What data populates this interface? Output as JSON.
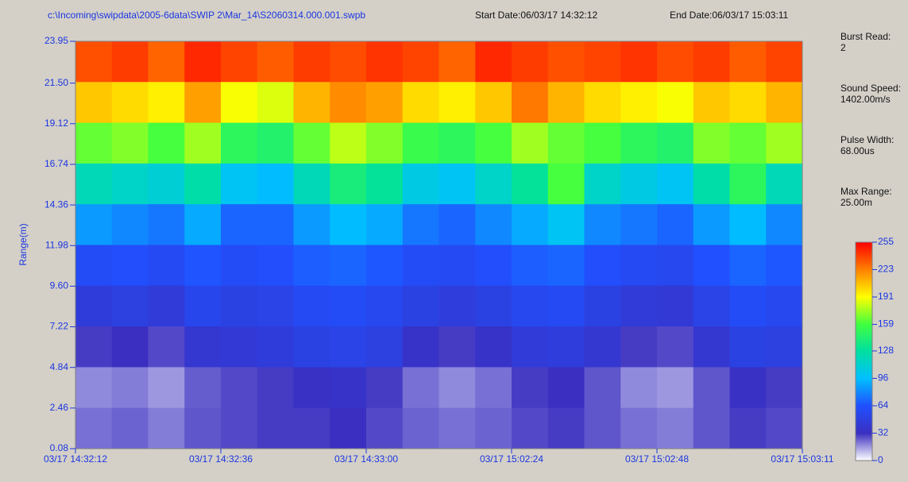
{
  "chart_data": {
    "type": "heatmap",
    "file_path": "c:\\Incoming\\swipdata\\2005-6data\\SWIP 2\\Mar_14\\S2060314.000.001.swpb",
    "start_date": "Start Date:06/03/17 14:32:12",
    "end_date": "End Date:06/03/17 15:03:11",
    "y_label": "Range(m)",
    "ylim": [
      0.08,
      23.95
    ],
    "yticks": [
      23.95,
      {
        "value": 21.5,
        "label": "21.50"
      },
      19.12,
      16.74,
      14.36,
      11.98,
      {
        "value": 9.6,
        "label": "9.60"
      },
      7.22,
      4.84,
      2.46,
      0.08
    ],
    "x_tick_labels": [
      "03/17 14:32:12",
      "03/17 14:32:36",
      "03/17 14:33:00",
      "03/17 15:02:24",
      "03/17 15:02:48",
      "03/17 15:03:11"
    ],
    "info": [
      {
        "label": "Burst Read:",
        "value": "2"
      },
      {
        "label": "Sound Speed:",
        "value": "1402.00m/s"
      },
      {
        "label": "Pulse Width:",
        "value": "68.00us"
      },
      {
        "label": "Max Range:",
        "value": "25.00m"
      }
    ],
    "colorbar_range": [
      0,
      255
    ],
    "colorbar_ticks": [
      255,
      223,
      191,
      159,
      128,
      96,
      64,
      32,
      0
    ],
    "colormap": [
      "#ff0000",
      "#ff8000",
      "#ffff00",
      "#40ff40",
      "#00e0a0",
      "#00c0ff",
      "#2050ff",
      "#3a2fc0",
      "#ffffff"
    ],
    "z": [
      [
        235,
        240,
        230,
        245,
        238,
        232,
        240,
        236,
        242,
        238,
        230,
        245,
        240,
        235,
        238,
        242,
        236,
        240,
        232,
        238
      ],
      [
        205,
        200,
        195,
        215,
        190,
        185,
        210,
        220,
        215,
        200,
        195,
        205,
        225,
        210,
        200,
        195,
        190,
        205,
        200,
        210
      ],
      [
        165,
        170,
        160,
        175,
        150,
        145,
        165,
        180,
        170,
        155,
        150,
        160,
        175,
        165,
        160,
        150,
        145,
        170,
        165,
        175
      ],
      [
        120,
        115,
        110,
        125,
        100,
        95,
        120,
        140,
        130,
        105,
        100,
        115,
        130,
        160,
        115,
        105,
        100,
        125,
        150,
        120
      ],
      [
        85,
        80,
        75,
        90,
        70,
        70,
        85,
        95,
        90,
        75,
        70,
        80,
        90,
        100,
        80,
        75,
        70,
        85,
        95,
        80
      ],
      [
        60,
        62,
        58,
        65,
        60,
        62,
        68,
        70,
        66,
        60,
        58,
        62,
        68,
        70,
        62,
        58,
        56,
        64,
        70,
        66
      ],
      [
        45,
        48,
        44,
        55,
        50,
        52,
        58,
        60,
        56,
        50,
        46,
        50,
        56,
        58,
        50,
        44,
        42,
        52,
        60,
        56
      ],
      [
        30,
        32,
        28,
        40,
        42,
        45,
        50,
        52,
        48,
        36,
        30,
        36,
        44,
        46,
        40,
        30,
        28,
        40,
        50,
        48
      ],
      [
        18,
        20,
        16,
        25,
        28,
        30,
        34,
        36,
        30,
        22,
        18,
        22,
        30,
        32,
        26,
        18,
        16,
        26,
        34,
        30
      ],
      [
        22,
        24,
        20,
        26,
        28,
        30,
        30,
        32,
        28,
        24,
        22,
        24,
        28,
        30,
        26,
        22,
        20,
        26,
        30,
        28
      ]
    ]
  }
}
